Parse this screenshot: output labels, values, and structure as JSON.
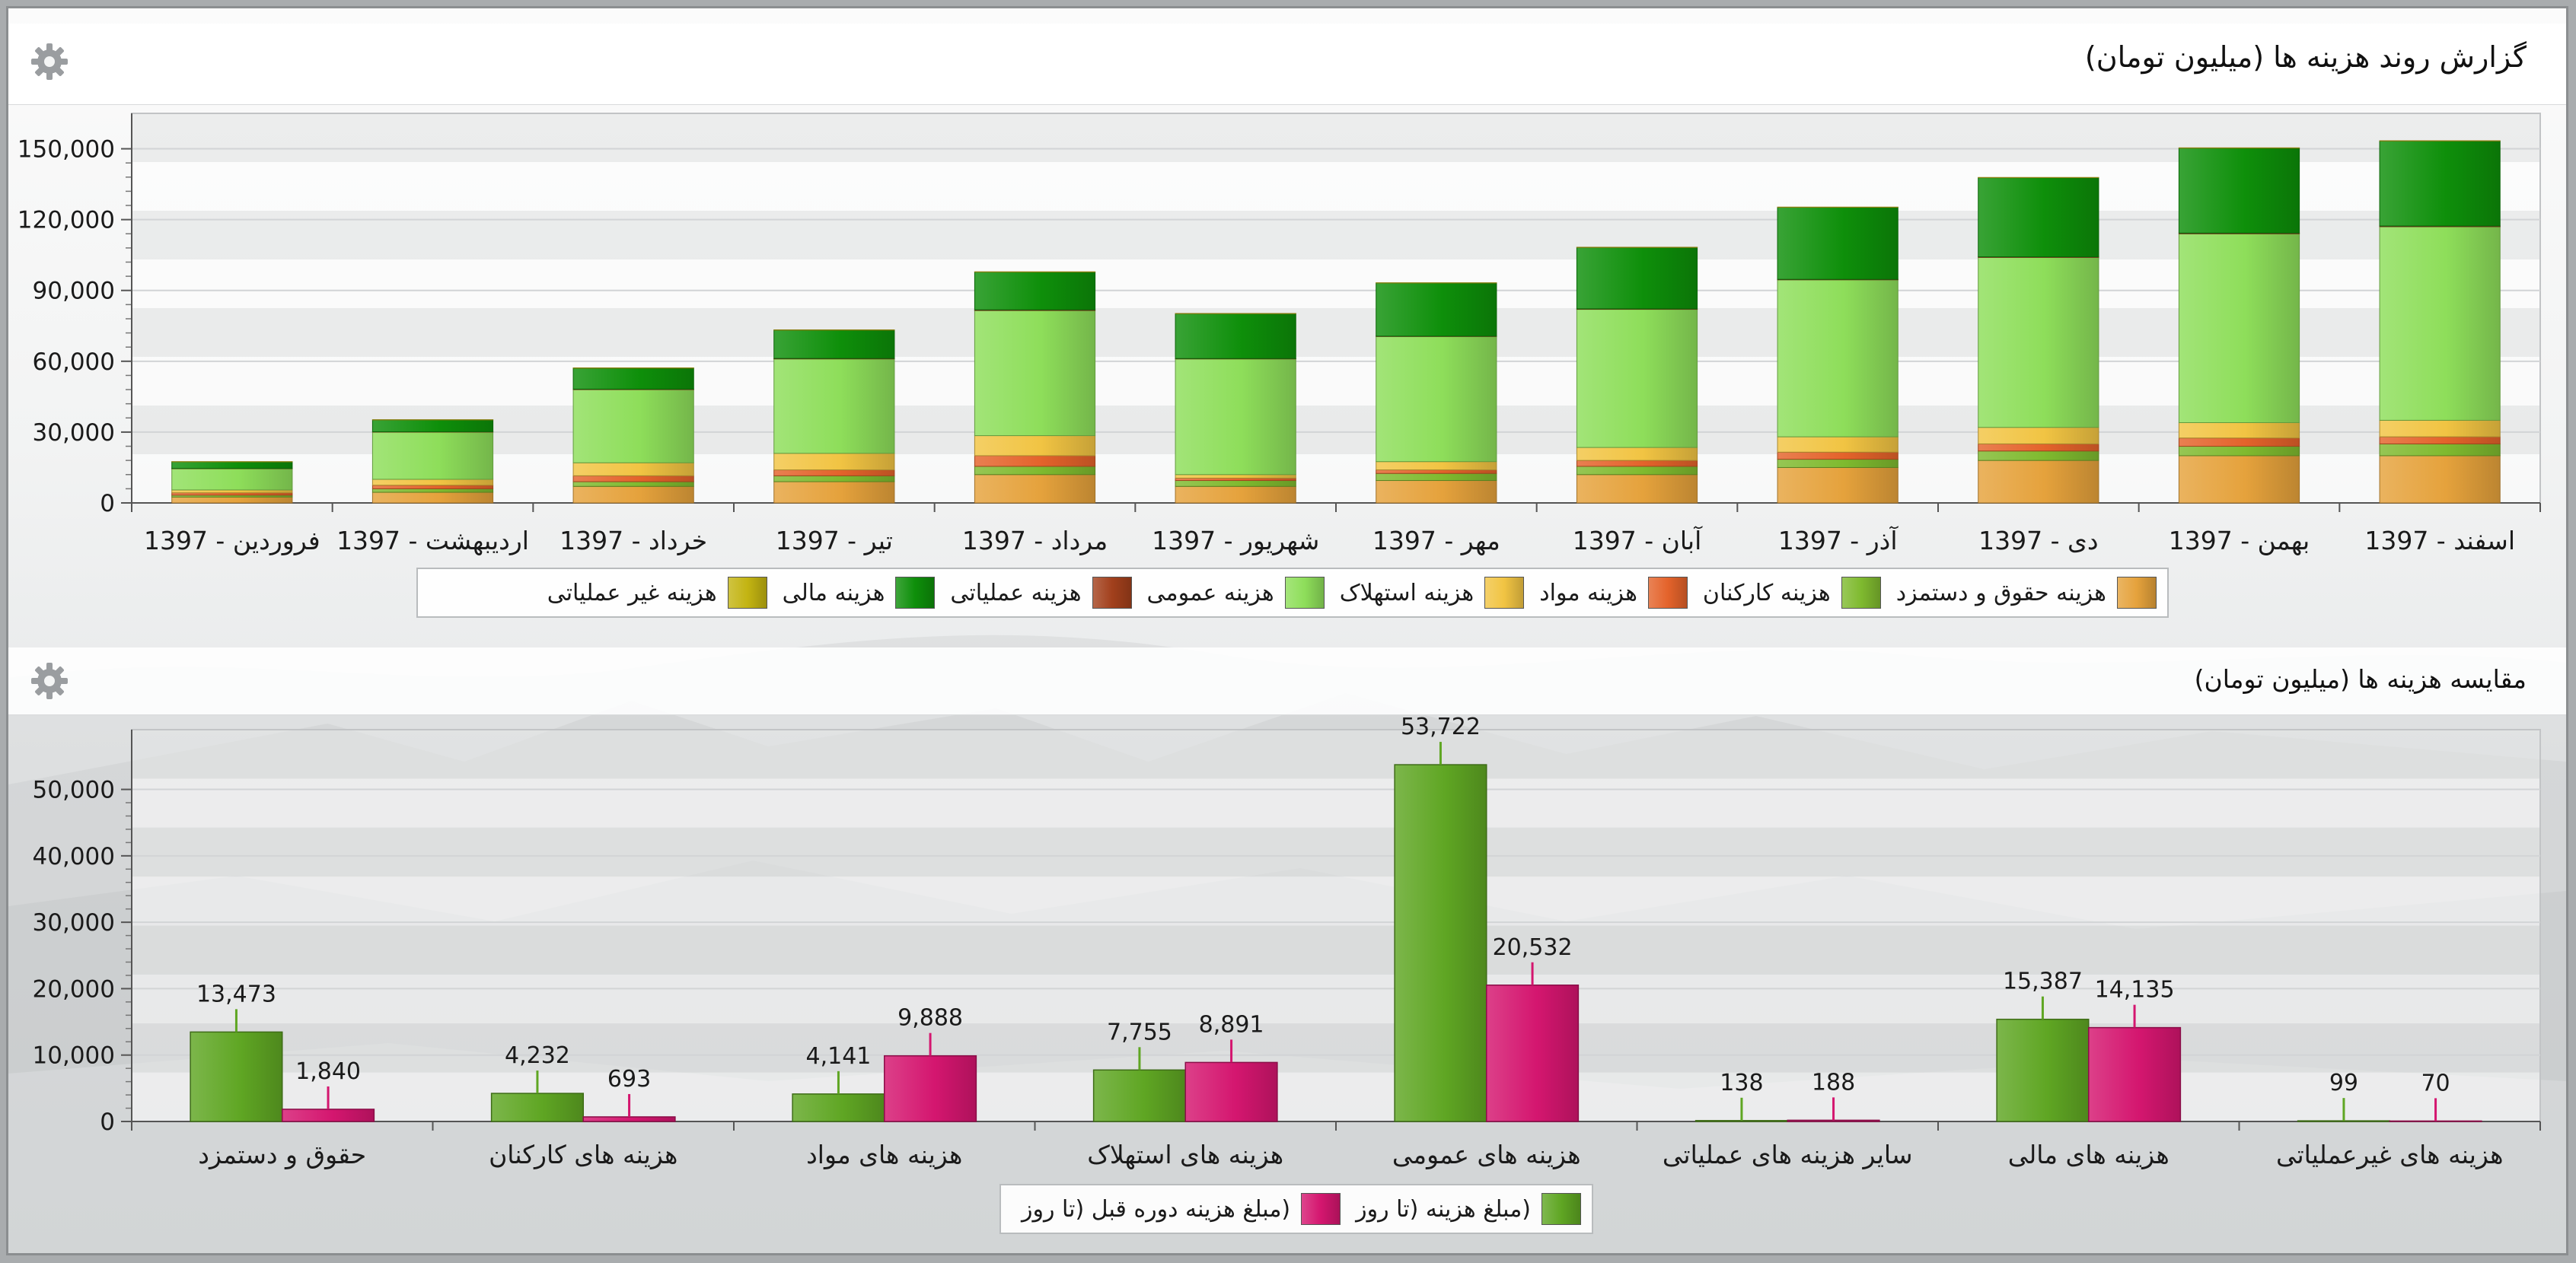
{
  "panels": [
    {
      "title": "گزارش روند هزینه ها (میلیون تومان)",
      "settings_icon": "gear-icon"
    },
    {
      "title": "مقایسه هزینه ها (میلیون تومان)",
      "settings_icon": "gear-icon"
    }
  ],
  "chart_data": [
    {
      "type": "bar",
      "stacked": true,
      "title": "گزارش روند هزینه ها (میلیون تومان)",
      "ylim": [
        0,
        165000
      ],
      "yticks": [
        0,
        30000,
        60000,
        90000,
        120000,
        150000
      ],
      "ytick_labels": [
        "0",
        "30,000",
        "60,000",
        "90,000",
        "120,000",
        "150,000"
      ],
      "grid": true,
      "legend_position": "bottom",
      "categories": [
        "فروردین - 1397",
        "اردیبهشت - 1397",
        "خرداد - 1397",
        "تیر - 1397",
        "مرداد - 1397",
        "شهریور - 1397",
        "مهر - 1397",
        "آبان - 1397",
        "آذر - 1397",
        "دی - 1397",
        "بهمن - 1397",
        "اسفند - 1397"
      ],
      "series": [
        {
          "name": "هزینه حقوق و دستمزد",
          "color": "#e5a23c",
          "values": [
            2500,
            4500,
            7000,
            9000,
            12000,
            7000,
            9500,
            12000,
            15000,
            18000,
            20000,
            20000
          ]
        },
        {
          "name": "هزینه کارکنان",
          "color": "#7fba2f",
          "values": [
            800,
            1500,
            2000,
            2500,
            3500,
            2500,
            3000,
            3500,
            3500,
            4000,
            4000,
            5000
          ]
        },
        {
          "name": "هزینه مواد",
          "color": "#e4632b",
          "values": [
            1000,
            1500,
            2500,
            2500,
            4500,
            1000,
            1500,
            2500,
            3000,
            3000,
            3500,
            3000
          ]
        },
        {
          "name": "هزینه استهلاک",
          "color": "#f1c443",
          "values": [
            1200,
            2500,
            5500,
            7000,
            8500,
            1500,
            3500,
            5500,
            6500,
            7000,
            6500,
            7000
          ]
        },
        {
          "name": "هزینه عمومی",
          "color": "#8ede5a",
          "values": [
            9000,
            20000,
            31000,
            40000,
            53000,
            49000,
            53000,
            58500,
            66500,
            72000,
            80000,
            82000
          ]
        },
        {
          "name": "هزینه عملیاتی",
          "color": "#a2401c",
          "values": [
            100,
            150,
            200,
            200,
            300,
            150,
            150,
            200,
            200,
            250,
            300,
            300
          ]
        },
        {
          "name": "هزینه مالی",
          "color": "#0e8f0a",
          "values": [
            2800,
            5000,
            8900,
            12000,
            16000,
            19000,
            22500,
            26000,
            30500,
            33500,
            36000,
            36000
          ]
        },
        {
          "name": "هزینه غیر عملیاتی",
          "color": "#c3b412",
          "values": [
            100,
            100,
            100,
            100,
            100,
            100,
            100,
            100,
            100,
            100,
            100,
            100
          ]
        }
      ]
    },
    {
      "type": "bar",
      "title": "مقایسه هزینه ها (میلیون تومان)",
      "ylim": [
        0,
        59000
      ],
      "yticks": [
        0,
        10000,
        20000,
        30000,
        40000,
        50000
      ],
      "ytick_labels": [
        "0",
        "10,000",
        "20,000",
        "30,000",
        "40,000",
        "50,000"
      ],
      "grid": true,
      "legend_position": "bottom",
      "categories": [
        "حقوق و دستمزد",
        "هزینه های کارکنان",
        "هزینه های مواد",
        "هزینه های استهلاک",
        "هزینه های عمومی",
        "سایر هزینه های عملیاتی",
        "هزینه های مالی",
        "هزینه های غیرعملیاتی"
      ],
      "series": [
        {
          "name": "(مبلغ هزینه (تا روز",
          "color": "#5fa623",
          "values": [
            13473,
            4232,
            4141,
            7755,
            53722,
            138,
            15387,
            99
          ],
          "labels": [
            "13,473",
            "4,232",
            "4,141",
            "7,755",
            "53,722",
            "138",
            "15,387",
            "99"
          ]
        },
        {
          "name": "(مبلغ هزینه دوره قبل (تا روز",
          "color": "#d4166f",
          "values": [
            1840,
            693,
            9888,
            8891,
            20532,
            188,
            14135,
            70
          ],
          "labels": [
            "1,840",
            "693",
            "9,888",
            "8,891",
            "20,532",
            "188",
            "14,135",
            "70"
          ]
        }
      ]
    }
  ]
}
